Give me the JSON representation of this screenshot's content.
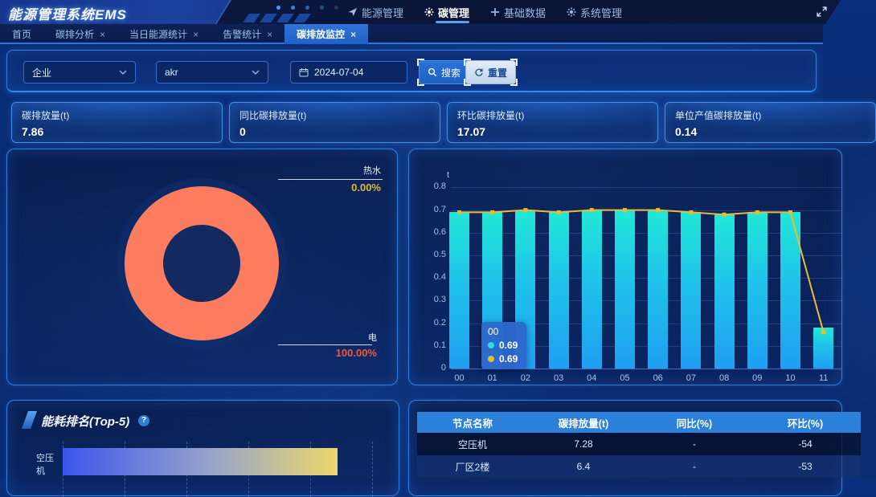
{
  "header": {
    "logo": "能源管理系统EMS",
    "nav": [
      {
        "key": "energy",
        "label": "能源管理",
        "icon": "send-icon",
        "active": false
      },
      {
        "key": "carbon",
        "label": "碳管理",
        "icon": "carbon-gear-icon",
        "active": true
      },
      {
        "key": "base-data",
        "label": "基础数据",
        "icon": "plus-icon",
        "active": false
      },
      {
        "key": "system",
        "label": "系统管理",
        "icon": "gear-icon",
        "active": false
      }
    ]
  },
  "tabs": [
    {
      "key": "home",
      "label": "首页",
      "closable": false,
      "active": false
    },
    {
      "key": "carbon-analysis",
      "label": "碳排分析",
      "closable": true,
      "active": false
    },
    {
      "key": "daily-energy-stats",
      "label": "当日能源统计",
      "closable": true,
      "active": false
    },
    {
      "key": "alarm-stats",
      "label": "告警统计",
      "closable": true,
      "active": false
    },
    {
      "key": "carbon-monitor",
      "label": "碳排放监控",
      "closable": true,
      "active": true
    }
  ],
  "filters": {
    "company_select": {
      "value": "企业"
    },
    "node_select": {
      "value": "akr"
    },
    "date_input": {
      "value": "2024-07-04"
    },
    "search_button": {
      "label": "搜索"
    },
    "reset_button": {
      "label": "重置"
    }
  },
  "kpi_cards": [
    {
      "key": "carbon-emission",
      "title": "碳排放量(t)",
      "value": "7.86"
    },
    {
      "key": "yoy-carbon-emission",
      "title": "同比碳排放量(t)",
      "value": "0"
    },
    {
      "key": "mom-carbon-emission",
      "title": "环比碳排放量(t)",
      "value": "17.07"
    },
    {
      "key": "per-output-carbon-emission",
      "title": "单位产值碳排放量(t)",
      "value": "0.14"
    }
  ],
  "chart_data": [
    {
      "type": "pie",
      "name": "energy-type-share-donut",
      "slices": [
        {
          "label": "热水",
          "value": 0,
          "pct_label": "0.00%",
          "pct_color": "#e0b838"
        },
        {
          "label": "电",
          "value": 100,
          "pct_label": "100.00%",
          "pct_color": "#ee5a3a"
        }
      ],
      "ring_color": "#fb7c5e"
    },
    {
      "type": "bar",
      "name": "hourly-carbon-emission",
      "unit": "t",
      "x": [
        "00",
        "01",
        "02",
        "03",
        "04",
        "05",
        "06",
        "07",
        "08",
        "09",
        "10",
        "11"
      ],
      "series": [
        {
          "name": "bar",
          "type": "bar",
          "values": [
            0.69,
            0.69,
            0.7,
            0.69,
            0.7,
            0.7,
            0.7,
            0.69,
            0.68,
            0.69,
            0.69,
            0.18
          ]
        },
        {
          "name": "line",
          "type": "line",
          "values": [
            0.69,
            0.69,
            0.7,
            0.69,
            0.7,
            0.7,
            0.7,
            0.69,
            0.68,
            0.69,
            0.69,
            0.16
          ]
        }
      ],
      "ylim": [
        0,
        0.8
      ],
      "yticks": [
        "0",
        "0.1",
        "0.2",
        "0.3",
        "0.4",
        "0.5",
        "0.6",
        "0.7",
        "0.8"
      ],
      "grid": true,
      "bar_color_top": "#20e8d8",
      "bar_color_bottom": "#1f9ff2",
      "line_color": "#e9bd2e",
      "tooltip": {
        "title": "00",
        "items": [
          {
            "marker_color": "#28e0e6",
            "value": "0.69"
          },
          {
            "marker_color": "#e9bd2e",
            "value": "0.69"
          }
        ]
      }
    },
    {
      "type": "bar-horizontal",
      "name": "energy-rank-top5",
      "title": "能耗排名(Top-5)",
      "categories": [
        "空压机"
      ],
      "values": [
        7.28
      ],
      "xlim": [
        0,
        8.2
      ],
      "bar_gradient": [
        "#3c55ee",
        "#98a6c8",
        "#eed76c"
      ]
    }
  ],
  "rank_panel": {
    "title": "能耗排名(Top-5)"
  },
  "node_table": {
    "headers": [
      "节点名称",
      "碳排放量(t)",
      "同比(%)",
      "环比(%)"
    ],
    "rows": [
      [
        "空压机",
        "7.28",
        "-",
        "-54"
      ],
      [
        "厂区2楼",
        "6.4",
        "-",
        "-53"
      ]
    ]
  },
  "colors": {
    "accent_blue": "#2f7fe0",
    "active_tab": "#2f74d9",
    "donut_ring": "#fb7c5e",
    "bar_cyan": "#1fc3ea",
    "line_gold": "#e9bd2e",
    "table_header": "#2b80d9",
    "hot_water_pct": "#e0b838",
    "electric_pct": "#ee5a3a"
  }
}
